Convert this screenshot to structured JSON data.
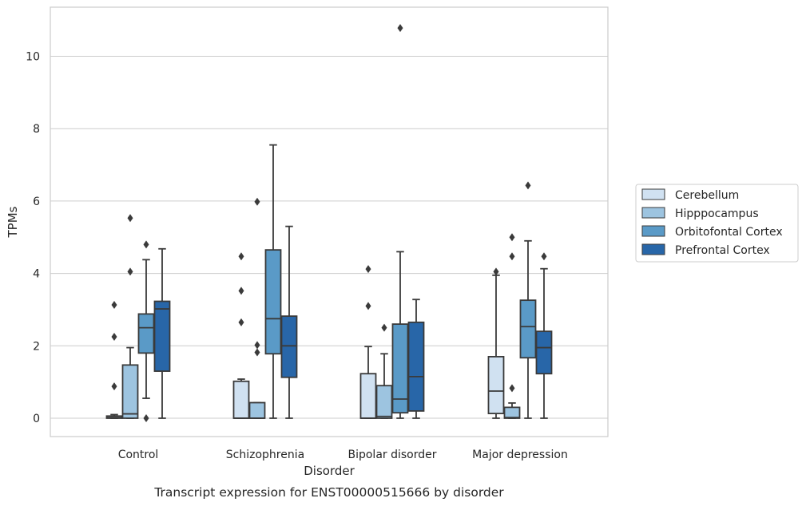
{
  "chart_data": {
    "type": "box",
    "caption": "Transcript expression for ENST00000515666 by disorder",
    "xlabel": "Disorder",
    "ylabel": "TPMs",
    "ylim": [
      -0.5,
      11.35
    ],
    "yticks": [
      0,
      2,
      4,
      6,
      8,
      10
    ],
    "grid": "horizontal",
    "legend_position": "right",
    "categories": [
      "Control",
      "Schizophrenia",
      "Bipolar disorder",
      "Major depression"
    ],
    "series": [
      {
        "name": "Cerebellum",
        "color": "#d0e1f1",
        "boxes": [
          {
            "whisker_low": 0,
            "q1": 0,
            "median": 0.02,
            "q3": 0.06,
            "whisker_high": 0.1,
            "outliers": [
              0.88,
              2.25,
              3.13
            ]
          },
          {
            "whisker_low": 0,
            "q1": 0,
            "median": 0,
            "q3": 1.02,
            "whisker_high": 1.08,
            "outliers": [
              2.65,
              3.52,
              4.47
            ]
          },
          {
            "whisker_low": 0,
            "q1": 0,
            "median": 0,
            "q3": 1.23,
            "whisker_high": 1.98,
            "outliers": [
              3.1,
              4.12
            ]
          },
          {
            "whisker_low": 0,
            "q1": 0.13,
            "median": 0.75,
            "q3": 1.7,
            "whisker_high": 3.95,
            "outliers": [
              4.05
            ]
          }
        ]
      },
      {
        "name": "Hipppocampus",
        "color": "#9dc4e0",
        "boxes": [
          {
            "whisker_low": 0,
            "q1": 0,
            "median": 0.12,
            "q3": 1.47,
            "whisker_high": 1.95,
            "outliers": [
              4.05,
              5.53
            ]
          },
          {
            "whisker_low": 0,
            "q1": 0,
            "median": 0,
            "q3": 0.43,
            "whisker_high": 0.43,
            "outliers": [
              1.82,
              2.02,
              5.98
            ]
          },
          {
            "whisker_low": 0,
            "q1": 0,
            "median": 0.05,
            "q3": 0.9,
            "whisker_high": 1.78,
            "outliers": [
              2.5
            ]
          },
          {
            "whisker_low": 0,
            "q1": 0,
            "median": 0.02,
            "q3": 0.3,
            "whisker_high": 0.42,
            "outliers": [
              0.83,
              4.47,
              5.0
            ]
          }
        ]
      },
      {
        "name": "Orbitofontal Cortex",
        "color": "#5a9ac7",
        "boxes": [
          {
            "whisker_low": 0.55,
            "q1": 1.8,
            "median": 2.5,
            "q3": 2.88,
            "whisker_high": 4.38,
            "outliers": [
              0,
              4.8
            ]
          },
          {
            "whisker_low": 0,
            "q1": 1.78,
            "median": 2.75,
            "q3": 4.65,
            "whisker_high": 7.55,
            "outliers": []
          },
          {
            "whisker_low": 0,
            "q1": 0.15,
            "median": 0.53,
            "q3": 2.6,
            "whisker_high": 4.6,
            "outliers": [
              10.78
            ]
          },
          {
            "whisker_low": 0,
            "q1": 1.67,
            "median": 2.53,
            "q3": 3.26,
            "whisker_high": 4.9,
            "outliers": [
              6.43
            ]
          }
        ]
      },
      {
        "name": "Prefrontal Cortex",
        "color": "#2866a8",
        "boxes": [
          {
            "whisker_low": 0,
            "q1": 1.3,
            "median": 3.02,
            "q3": 3.23,
            "whisker_high": 4.68,
            "outliers": []
          },
          {
            "whisker_low": 0,
            "q1": 1.13,
            "median": 2.0,
            "q3": 2.82,
            "whisker_high": 5.3,
            "outliers": []
          },
          {
            "whisker_low": 0,
            "q1": 0.2,
            "median": 1.15,
            "q3": 2.65,
            "whisker_high": 3.28,
            "outliers": []
          },
          {
            "whisker_low": 0,
            "q1": 1.23,
            "median": 1.95,
            "q3": 2.4,
            "whisker_high": 4.13,
            "outliers": [
              4.47
            ]
          }
        ]
      }
    ]
  }
}
